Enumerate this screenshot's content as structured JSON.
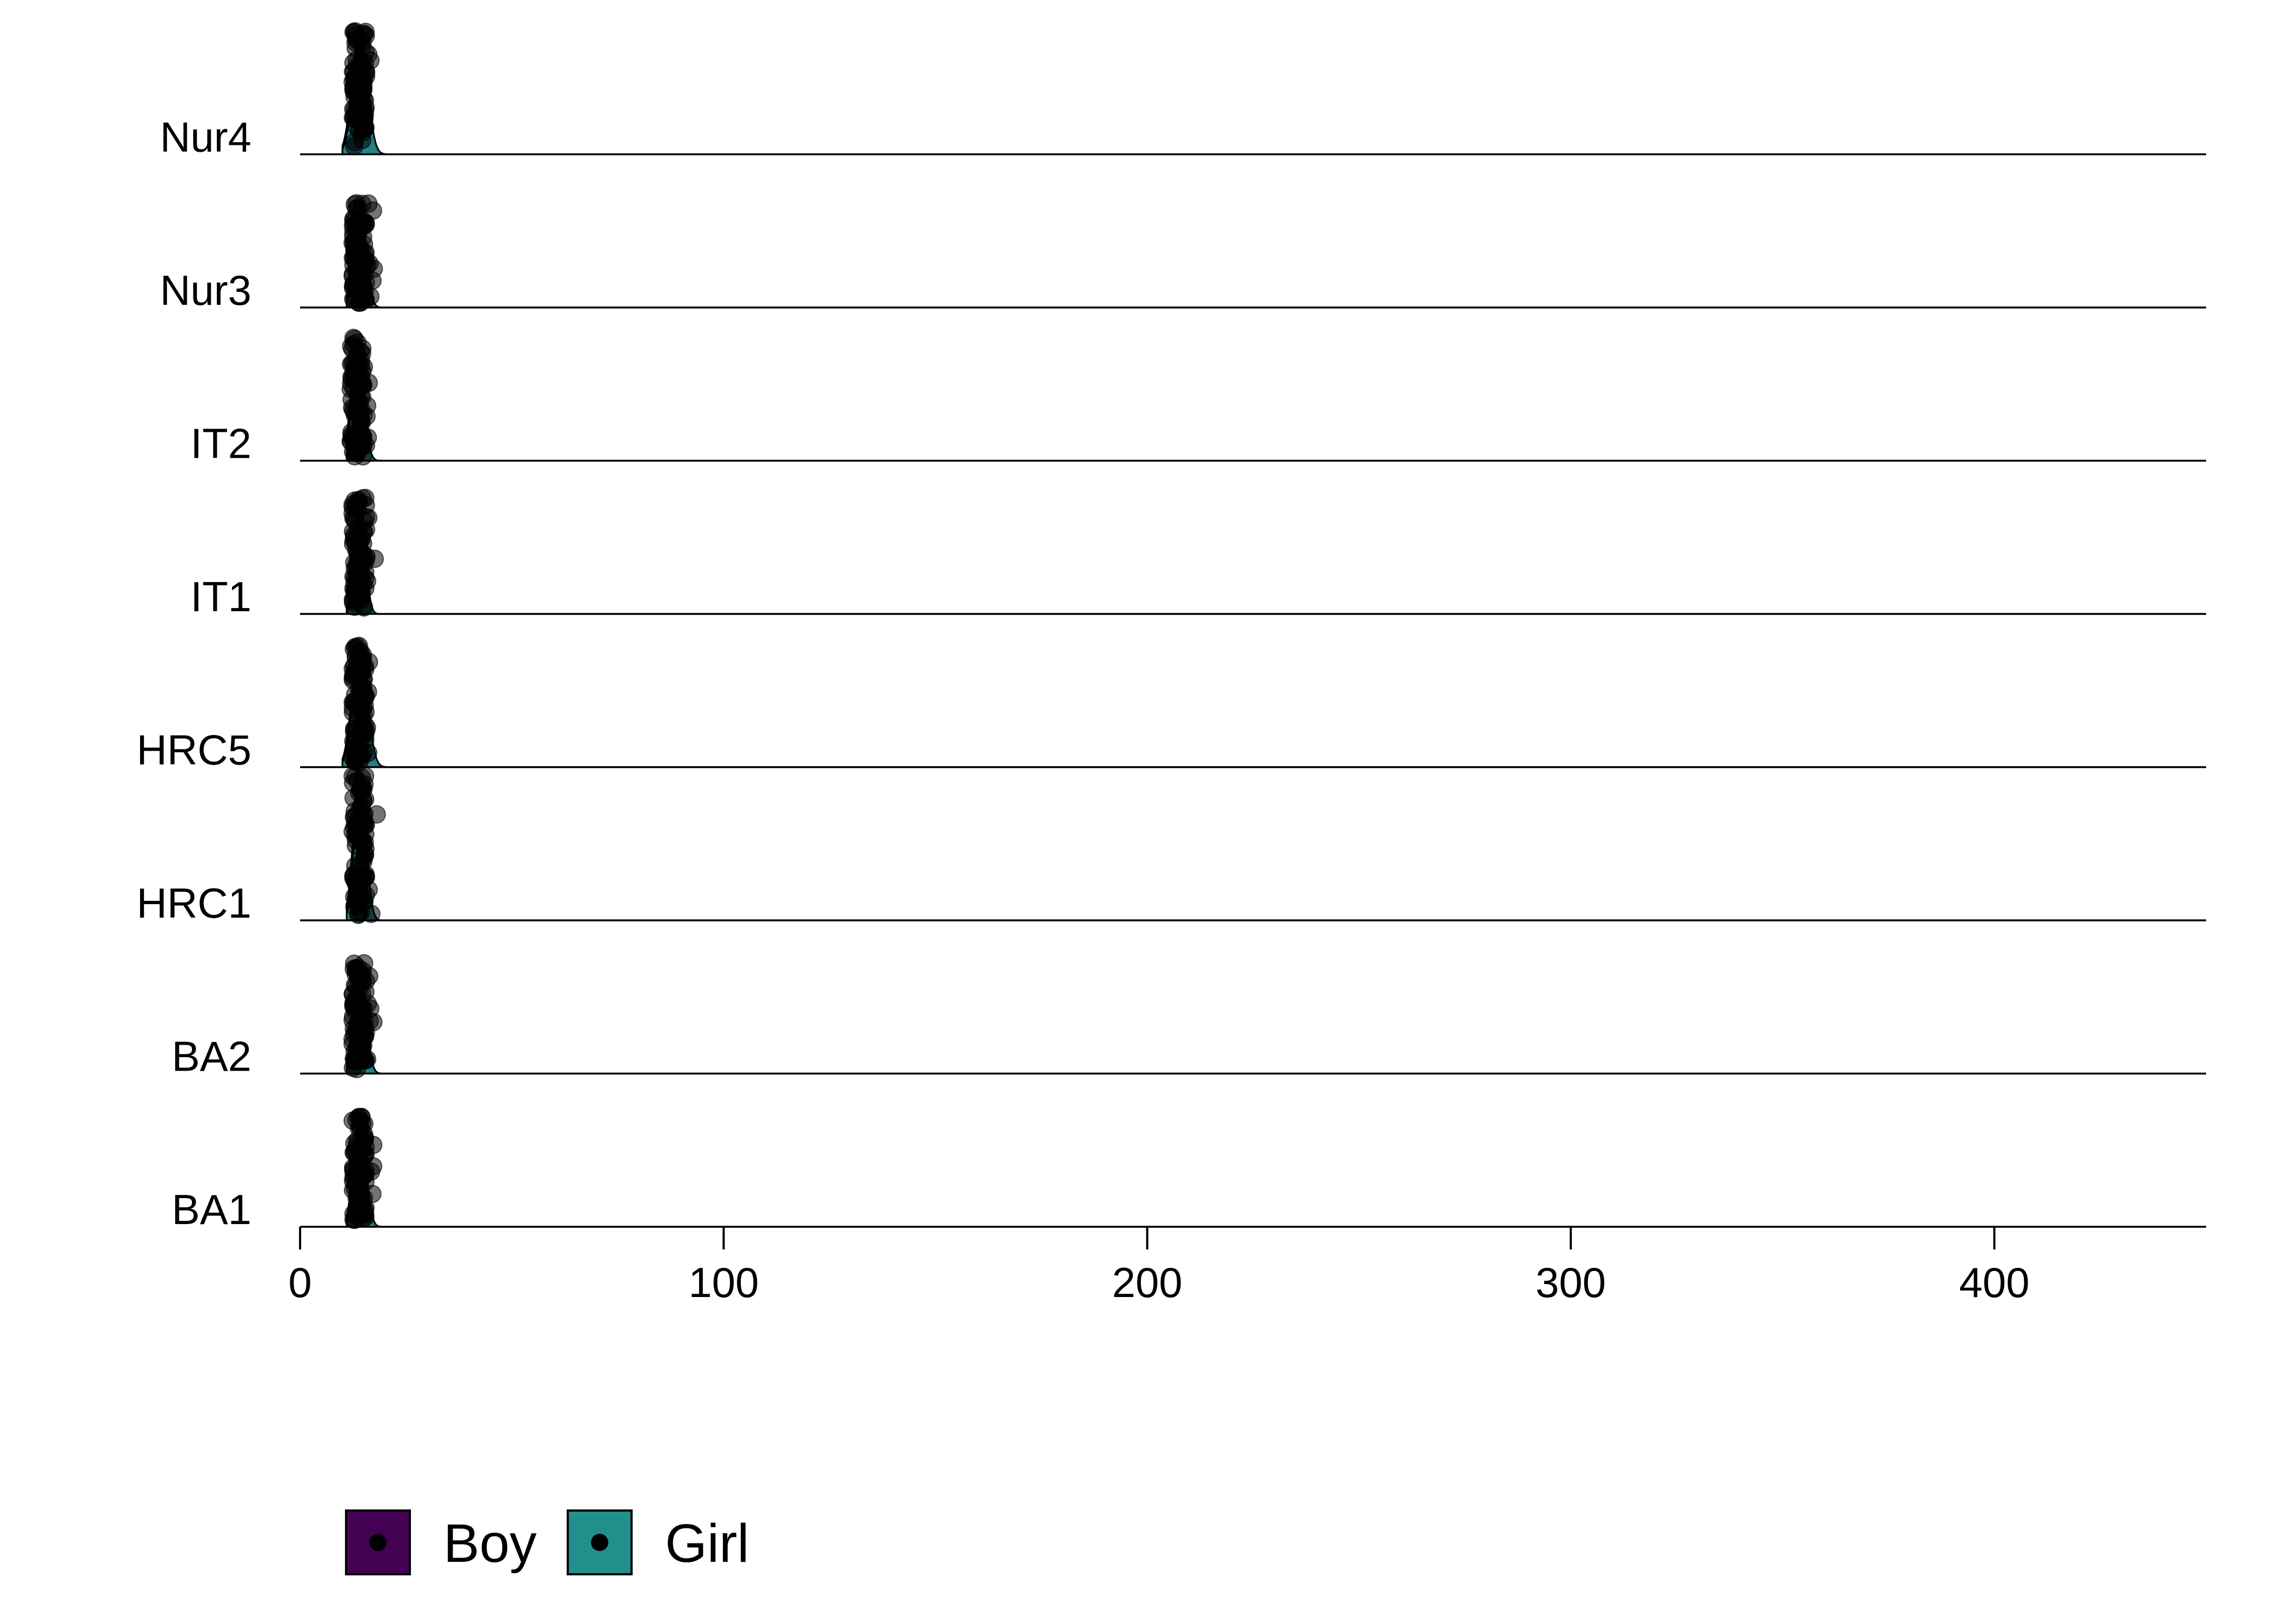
{
  "chart_data": {
    "type": "ridgeline",
    "title": "",
    "xlabel": "",
    "ylabel": "",
    "xlim": [
      0,
      450
    ],
    "x_ticks": [
      0,
      100,
      200,
      300,
      400
    ],
    "x_tick_labels": [
      "0",
      "100",
      "200",
      "300",
      "400"
    ],
    "grid": false,
    "legend_position": "bottom-left",
    "categories": [
      "BA1",
      "BA2",
      "HRC1",
      "HRC5",
      "IT1",
      "IT2",
      "Nur3",
      "Nur4"
    ],
    "series": [
      {
        "name": "Boy",
        "color": "#440154"
      },
      {
        "name": "Girl",
        "color": "#21908C"
      }
    ],
    "groups": [
      {
        "label": "BA1",
        "x_min": 11,
        "x_max": 19,
        "mode": 14,
        "peak_height": 0.7
      },
      {
        "label": "BA2",
        "x_min": 11,
        "x_max": 19,
        "mode": 14,
        "peak_height": 0.7
      },
      {
        "label": "HRC1",
        "x_min": 11,
        "x_max": 19,
        "mode": 14,
        "peak_height": 1.0
      },
      {
        "label": "HRC5",
        "x_min": 10,
        "x_max": 20,
        "mode": 14,
        "peak_height": 0.8
      },
      {
        "label": "IT1",
        "x_min": 11,
        "x_max": 18,
        "mode": 14,
        "peak_height": 0.75
      },
      {
        "label": "IT2",
        "x_min": 11,
        "x_max": 19,
        "mode": 13.5,
        "peak_height": 0.8
      },
      {
        "label": "Nur3",
        "x_min": 11,
        "x_max": 19,
        "mode": 14,
        "peak_height": 0.65
      },
      {
        "label": "Nur4",
        "x_min": 10,
        "x_max": 20,
        "mode": 14,
        "peak_height": 0.82
      }
    ],
    "point_color": "#000000"
  }
}
